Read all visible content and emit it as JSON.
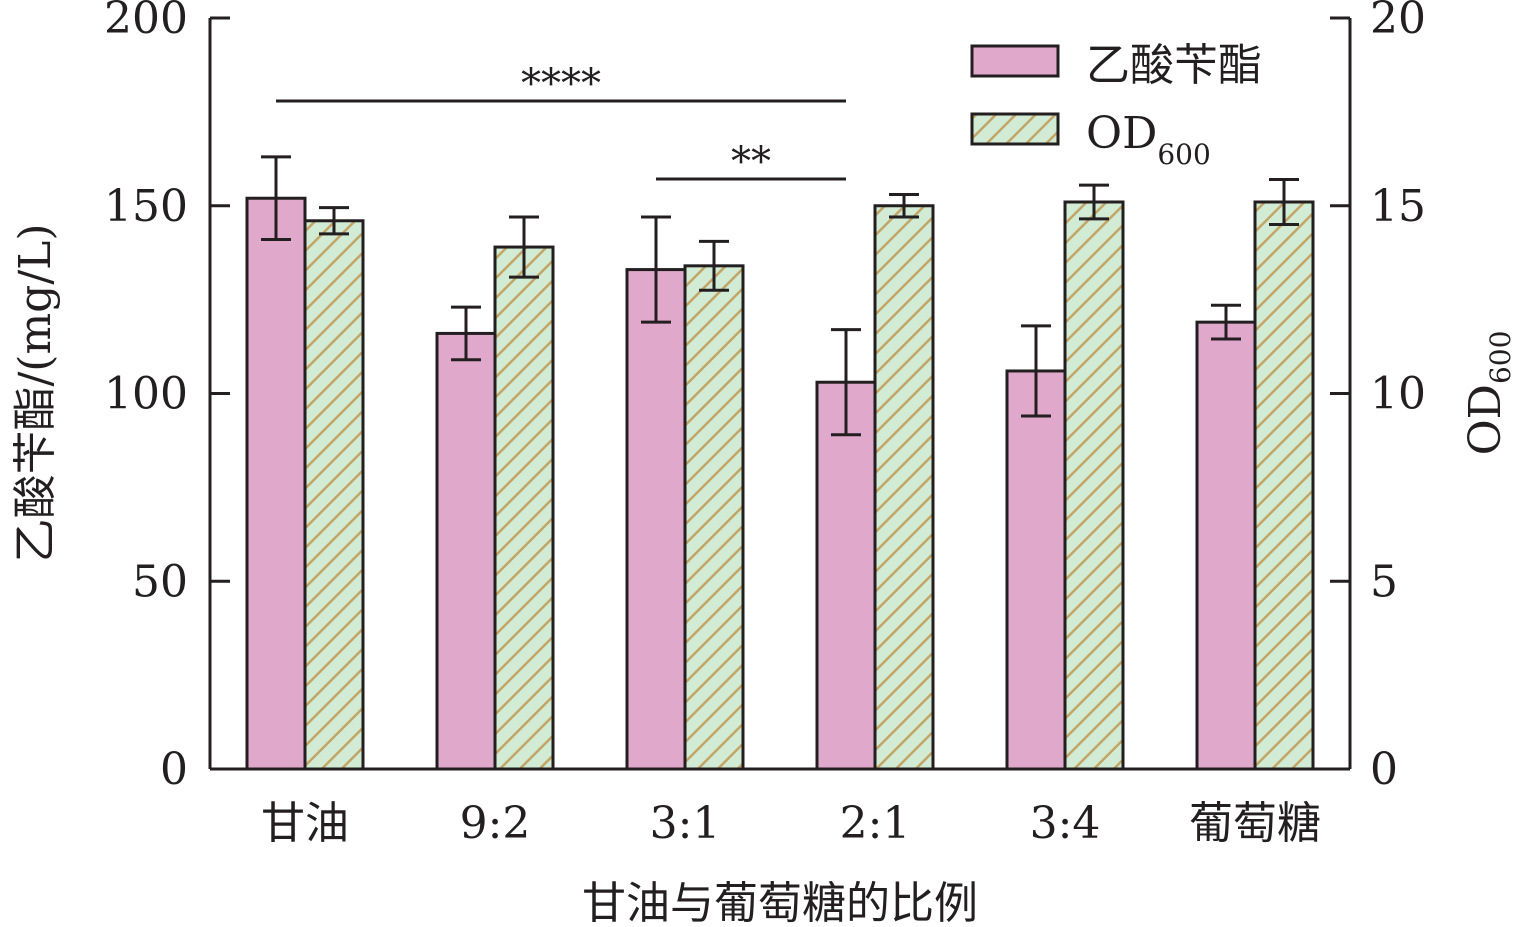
{
  "chart_data": {
    "type": "bar",
    "xlabel": "甘油与葡萄糖的比例",
    "ylabel_left": "乙酸苄酯/(mg/L)",
    "ylabel_right": {
      "base": "OD",
      "sub": "600"
    },
    "ylim_left": [
      0,
      200
    ],
    "ylim_right": [
      0,
      20
    ],
    "yticks_left": [
      "0",
      "50",
      "100",
      "150",
      "200"
    ],
    "yticks_right": [
      "0",
      "5",
      "10",
      "15",
      "20"
    ],
    "categories": [
      "甘油",
      "9:2",
      "3:1",
      "2:1",
      "3:4",
      "葡萄糖"
    ],
    "series": [
      {
        "name": "乙酸苄酯",
        "axis": "left",
        "values": [
          152,
          116,
          133,
          103,
          106,
          119
        ],
        "errors": [
          11,
          7,
          14,
          14,
          12,
          4.5
        ],
        "color": "#e0a8cb"
      },
      {
        "name_base": "OD",
        "name_sub": "600",
        "axis": "right",
        "values": [
          14.6,
          13.9,
          13.4,
          15.0,
          15.1,
          15.1
        ],
        "errors": [
          0.35,
          0.8,
          0.65,
          0.3,
          0.45,
          0.6
        ],
        "color": "#d2ebd5",
        "hatch": "#c3a566"
      }
    ],
    "legend_position": "top-right",
    "significance": [
      {
        "label": "****",
        "from": "甘油",
        "to": "2:1"
      },
      {
        "label": "**",
        "from": "3:1",
        "to": "2:1"
      }
    ]
  }
}
